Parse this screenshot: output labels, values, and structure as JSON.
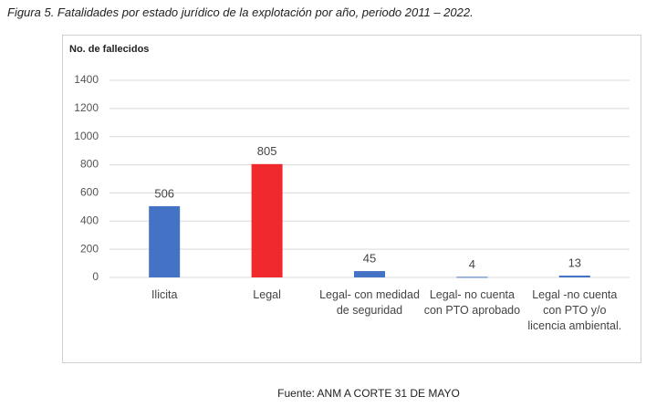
{
  "caption": "Figura 5. Fatalidades por estado jurídico de la explotación por año, periodo 2011 – 2022.",
  "source": "Fuente: ANM A CORTE 31 DE MAYO",
  "chart_data": {
    "type": "bar",
    "y_label": "No. de fallecidos",
    "categories": [
      "Ilicita",
      "Legal",
      "Legal- con medidad de seguridad",
      "Legal- no cuenta con PTO aprobado",
      "Legal -no cuenta con PTO y/o licencia ambiental."
    ],
    "values": [
      506,
      805,
      45,
      4,
      13
    ],
    "colors": [
      "#4472c4",
      "#f0292c",
      "#4472c4",
      "#4472c4",
      "#4472c4"
    ],
    "ylim": [
      0,
      1400
    ],
    "yticks": [
      0,
      200,
      400,
      600,
      800,
      1000,
      1200,
      1400
    ],
    "grid": true
  }
}
